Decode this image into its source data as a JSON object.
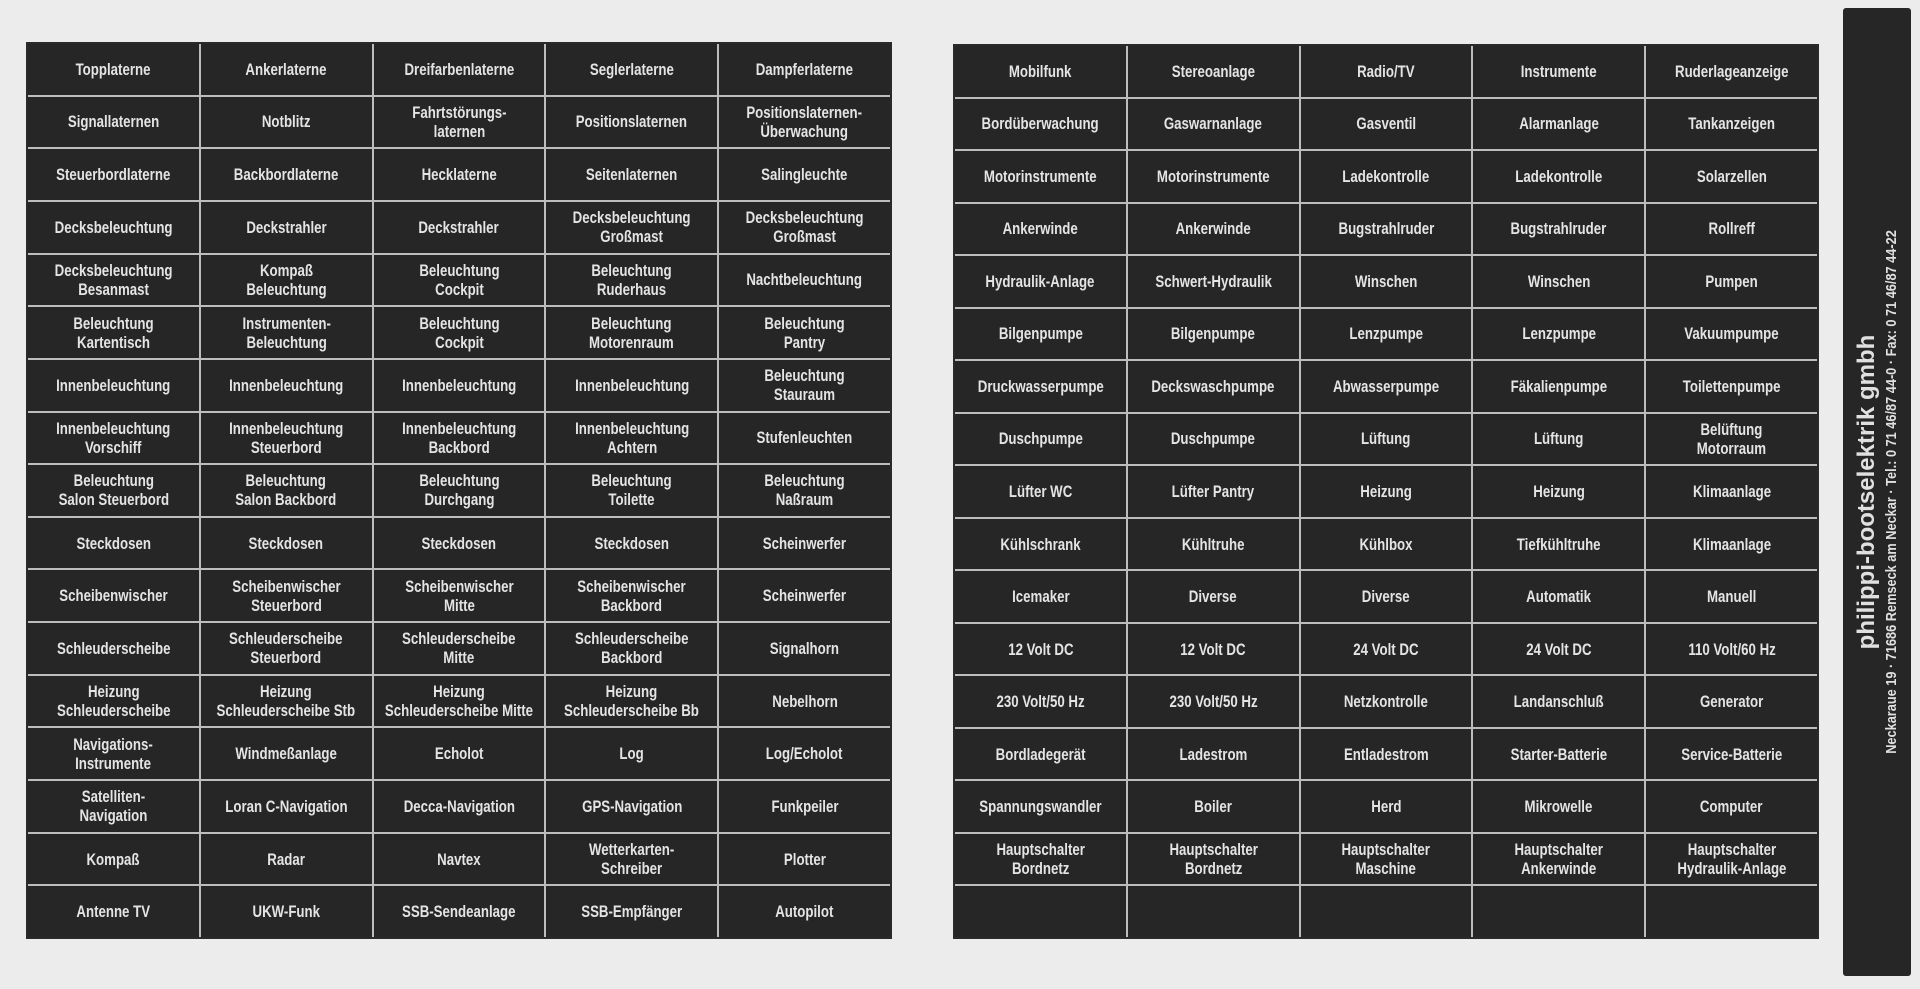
{
  "left_sheet": [
    [
      "Topplaterne",
      "Ankerlaterne",
      "Dreifarbenlaterne",
      "Seglerlaterne",
      "Dampferlaterne"
    ],
    [
      "Signallaternen",
      "Notblitz",
      "Fahrtstörungs-\nlaternen",
      "Positionslaternen",
      "Positionslaternen-\nÜberwachung"
    ],
    [
      "Steuerbordlaterne",
      "Backbordlaterne",
      "Hecklaterne",
      "Seitenlaternen",
      "Salingleuchte"
    ],
    [
      "Decksbeleuchtung",
      "Deckstrahler",
      "Deckstrahler",
      "Decksbeleuchtung\nGroßmast",
      "Decksbeleuchtung\nGroßmast"
    ],
    [
      "Decksbeleuchtung\nBesanmast",
      "Kompaß\nBeleuchtung",
      "Beleuchtung\nCockpit",
      "Beleuchtung\nRuderhaus",
      "Nachtbeleuchtung"
    ],
    [
      "Beleuchtung\nKartentisch",
      "Instrumenten-\nBeleuchtung",
      "Beleuchtung\nCockpit",
      "Beleuchtung\nMotorenraum",
      "Beleuchtung\nPantry"
    ],
    [
      "Innenbeleuchtung",
      "Innenbeleuchtung",
      "Innenbeleuchtung",
      "Innenbeleuchtung",
      "Beleuchtung\nStauraum"
    ],
    [
      "Innenbeleuchtung\nVorschiff",
      "Innenbeleuchtung\nSteuerbord",
      "Innenbeleuchtung\nBackbord",
      "Innenbeleuchtung\nAchtern",
      "Stufenleuchten"
    ],
    [
      "Beleuchtung\nSalon Steuerbord",
      "Beleuchtung\nSalon Backbord",
      "Beleuchtung\nDurchgang",
      "Beleuchtung\nToilette",
      "Beleuchtung\nNaßraum"
    ],
    [
      "Steckdosen",
      "Steckdosen",
      "Steckdosen",
      "Steckdosen",
      "Scheinwerfer"
    ],
    [
      "Scheibenwischer",
      "Scheibenwischer\nSteuerbord",
      "Scheibenwischer\nMitte",
      "Scheibenwischer\nBackbord",
      "Scheinwerfer"
    ],
    [
      "Schleuderscheibe",
      "Schleuderscheibe\nSteuerbord",
      "Schleuderscheibe\nMitte",
      "Schleuderscheibe\nBackbord",
      "Signalhorn"
    ],
    [
      "Heizung\nSchleuderscheibe",
      "Heizung\nSchleuderscheibe Stb",
      "Heizung\nSchleuderscheibe Mitte",
      "Heizung\nSchleuderscheibe Bb",
      "Nebelhorn"
    ],
    [
      "Navigations-\nInstrumente",
      "Windmeßanlage",
      "Echolot",
      "Log",
      "Log/Echolot"
    ],
    [
      "Satelliten-\nNavigation",
      "Loran C-Navigation",
      "Decca-Navigation",
      "GPS-Navigation",
      "Funkpeiler"
    ],
    [
      "Kompaß",
      "Radar",
      "Navtex",
      "Wetterkarten-\nSchreiber",
      "Plotter"
    ],
    [
      "Antenne TV",
      "UKW-Funk",
      "SSB-Sendeanlage",
      "SSB-Empfänger",
      "Autopilot"
    ]
  ],
  "right_sheet": [
    [
      "Mobilfunk",
      "Stereoanlage",
      "Radio/TV",
      "Instrumente",
      "Ruderlageanzeige"
    ],
    [
      "Bordüberwachung",
      "Gaswarnanlage",
      "Gasventil",
      "Alarmanlage",
      "Tankanzeigen"
    ],
    [
      "Motorinstrumente",
      "Motorinstrumente",
      "Ladekontrolle",
      "Ladekontrolle",
      "Solarzellen"
    ],
    [
      "Ankerwinde",
      "Ankerwinde",
      "Bugstrahlruder",
      "Bugstrahlruder",
      "Rollreff"
    ],
    [
      "Hydraulik-Anlage",
      "Schwert-Hydraulik",
      "Winschen",
      "Winschen",
      "Pumpen"
    ],
    [
      "Bilgenpumpe",
      "Bilgenpumpe",
      "Lenzpumpe",
      "Lenzpumpe",
      "Vakuumpumpe"
    ],
    [
      "Druckwasserpumpe",
      "Deckswaschpumpe",
      "Abwasserpumpe",
      "Fäkalienpumpe",
      "Toilettenpumpe"
    ],
    [
      "Duschpumpe",
      "Duschpumpe",
      "Lüftung",
      "Lüftung",
      "Belüftung\nMotorraum"
    ],
    [
      "Lüfter WC",
      "Lüfter Pantry",
      "Heizung",
      "Heizung",
      "Klimaanlage"
    ],
    [
      "Kühlschrank",
      "Kühltruhe",
      "Kühlbox",
      "Tiefkühltruhe",
      "Klimaanlage"
    ],
    [
      "Icemaker",
      "Diverse",
      "Diverse",
      "Automatik",
      "Manuell"
    ],
    [
      "12 Volt DC",
      "12 Volt DC",
      "24 Volt DC",
      "24 Volt DC",
      "110 Volt/60 Hz"
    ],
    [
      "230 Volt/50 Hz",
      "230 Volt/50 Hz",
      "Netzkontrolle",
      "Landanschluß",
      "Generator"
    ],
    [
      "Bordladegerät",
      "Ladestrom",
      "Entladestrom",
      "Starter-Batterie",
      "Service-Batterie"
    ],
    [
      "Spannungswandler",
      "Boiler",
      "Herd",
      "Mikrowelle",
      "Computer"
    ],
    [
      "Hauptschalter\nBordnetz",
      "Hauptschalter\nBordnetz",
      "Hauptschalter\nMaschine",
      "Hauptschalter\nAnkerwinde",
      "Hauptschalter\nHydraulik-Anlage"
    ],
    [
      "",
      "",
      "",
      "",
      ""
    ]
  ],
  "strip": {
    "company": "philippi-bootselektrik gmbh",
    "address": "Neckaraue 19  ·  71686 Remseck am Neckar  ·  Tel.: 0 71 46/87 44-0  ·  Fax: 0 71 46/87 44-22"
  },
  "colors": {
    "label_bg": "#262626",
    "label_text": "#e4e4e4",
    "paper": "#ececec"
  }
}
